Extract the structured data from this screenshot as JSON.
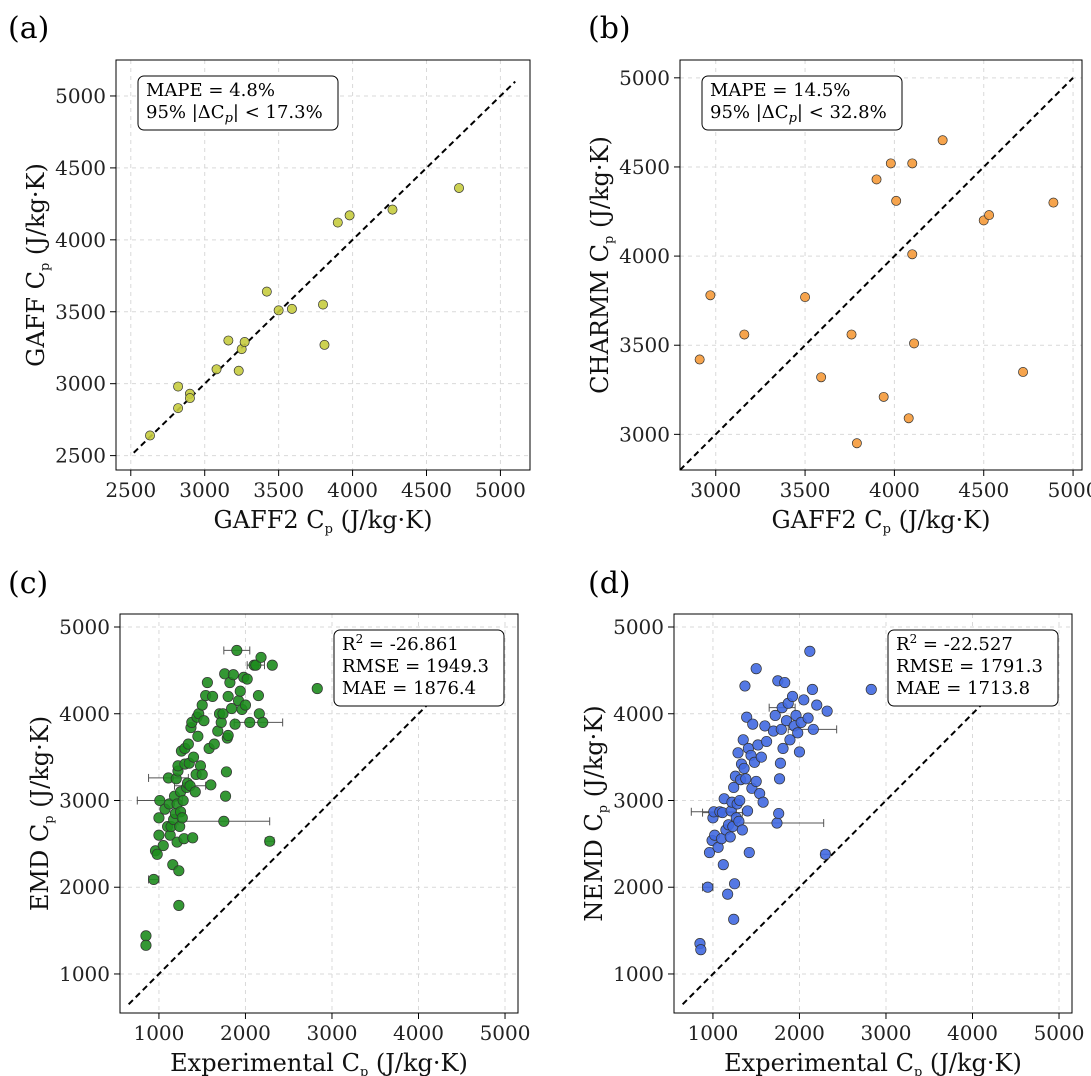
{
  "chart_data": [
    {
      "type": "scatter",
      "panel_label": "(a)",
      "xlabel": "GAFF2 C",
      "xlabel_sub": "p",
      "xlabel_unit": " (J/kg·K)",
      "ylabel": "GAFF C",
      "ylabel_sub": "p",
      "ylabel_unit": " (J/kg·K)",
      "xlim": [
        2400,
        5200
      ],
      "ylim": [
        2400,
        5250
      ],
      "xticks": [
        2500,
        3000,
        3500,
        4000,
        4500,
        5000
      ],
      "yticks": [
        2500,
        3000,
        3500,
        4000,
        4500,
        5000
      ],
      "grid": true,
      "color": "#c6cc3f",
      "diagonal": [
        2520,
        5100
      ],
      "stats_position": "top-left",
      "stats": [
        "MAPE = 4.8%",
        "95% |ΔCp| < 17.3%"
      ],
      "points": [
        [
          2630,
          2640
        ],
        [
          2820,
          2830
        ],
        [
          2820,
          2980
        ],
        [
          2900,
          2930
        ],
        [
          2900,
          2900
        ],
        [
          3080,
          3100
        ],
        [
          3160,
          3300
        ],
        [
          3230,
          3090
        ],
        [
          3250,
          3240
        ],
        [
          3270,
          3290
        ],
        [
          3420,
          3640
        ],
        [
          3500,
          3510
        ],
        [
          3590,
          3520
        ],
        [
          3800,
          3550
        ],
        [
          3810,
          3270
        ],
        [
          3900,
          4120
        ],
        [
          3980,
          4170
        ],
        [
          4270,
          4210
        ],
        [
          4720,
          4360
        ]
      ]
    },
    {
      "type": "scatter",
      "panel_label": "(b)",
      "xlabel": "GAFF2 C",
      "xlabel_sub": "p",
      "xlabel_unit": " (J/kg·K)",
      "ylabel": "CHARMM C",
      "ylabel_sub": "p",
      "ylabel_unit": " (J/kg·K)",
      "xlim": [
        2800,
        5050
      ],
      "ylim": [
        2800,
        5100
      ],
      "xticks": [
        3000,
        3500,
        4000,
        4500,
        5000
      ],
      "yticks": [
        3000,
        3500,
        4000,
        4500,
        5000
      ],
      "grid": true,
      "color": "#f59a3a",
      "diagonal": [
        2800,
        5000
      ],
      "stats_position": "top-left",
      "stats": [
        "MAPE = 14.5%",
        "95% |ΔCp| < 32.8%"
      ],
      "points": [
        [
          2910,
          3420
        ],
        [
          2970,
          3780
        ],
        [
          3160,
          3560
        ],
        [
          3500,
          3770
        ],
        [
          3590,
          3320
        ],
        [
          3760,
          3560
        ],
        [
          3790,
          2950
        ],
        [
          3900,
          4430
        ],
        [
          3940,
          3210
        ],
        [
          3980,
          4520
        ],
        [
          4010,
          4310
        ],
        [
          4080,
          3090
        ],
        [
          4100,
          4520
        ],
        [
          4100,
          4010
        ],
        [
          4110,
          3510
        ],
        [
          4270,
          4650
        ],
        [
          4500,
          4200
        ],
        [
          4530,
          4230
        ],
        [
          4720,
          3350
        ],
        [
          4890,
          4300
        ]
      ]
    },
    {
      "type": "scatter",
      "panel_label": "(c)",
      "xlabel": "Experimental C",
      "xlabel_sub": "p",
      "xlabel_unit": " (J/kg·K)",
      "ylabel": "EMD C",
      "ylabel_sub": "p",
      "ylabel_unit": " (J/kg·K)",
      "xlim": [
        550,
        5150
      ],
      "ylim": [
        550,
        5150
      ],
      "xticks": [
        1000,
        2000,
        3000,
        4000,
        5000
      ],
      "yticks": [
        1000,
        2000,
        3000,
        4000,
        5000
      ],
      "grid": true,
      "color": "#1e8c1e",
      "diagonal": [
        650,
        4350
      ],
      "stats_position": "top-right",
      "stats": [
        "R2 = -26.861",
        "RMSE = 1949.3",
        "MAE = 1876.4"
      ],
      "errorbars": [
        {
          "x": 1900,
          "y": 4730,
          "xerr": 150
        },
        {
          "x": 2120,
          "y": 4560,
          "xerr": 100
        },
        {
          "x": 2150,
          "y": 3900,
          "xerr": 280
        },
        {
          "x": 1750,
          "y": 2760,
          "xerr": 530
        },
        {
          "x": 1010,
          "y": 3000,
          "xerr": 260
        },
        {
          "x": 1110,
          "y": 3260,
          "xerr": 230
        },
        {
          "x": 1360,
          "y": 3170,
          "xerr": 180
        },
        {
          "x": 940,
          "y": 2090,
          "xerr": 60
        },
        {
          "x": 2280,
          "y": 2530,
          "xerr": 50
        }
      ],
      "points": [
        [
          850,
          1440
        ],
        [
          850,
          1330
        ],
        [
          940,
          2090
        ],
        [
          960,
          2420
        ],
        [
          980,
          2380
        ],
        [
          1000,
          2600
        ],
        [
          1000,
          2800
        ],
        [
          1010,
          3000
        ],
        [
          1050,
          2480
        ],
        [
          1070,
          2900
        ],
        [
          1100,
          2700
        ],
        [
          1110,
          3260
        ],
        [
          1120,
          2960
        ],
        [
          1130,
          2600
        ],
        [
          1140,
          2700
        ],
        [
          1160,
          2260
        ],
        [
          1170,
          2780
        ],
        [
          1180,
          3050
        ],
        [
          1190,
          2850
        ],
        [
          1200,
          3250
        ],
        [
          1210,
          2520
        ],
        [
          1210,
          2960
        ],
        [
          1220,
          3340
        ],
        [
          1220,
          3400
        ],
        [
          1230,
          2190
        ],
        [
          1230,
          1790
        ],
        [
          1240,
          2700
        ],
        [
          1250,
          2870
        ],
        [
          1250,
          3100
        ],
        [
          1260,
          3570
        ],
        [
          1270,
          2800
        ],
        [
          1280,
          3000
        ],
        [
          1290,
          2560
        ],
        [
          1300,
          3420
        ],
        [
          1300,
          3600
        ],
        [
          1320,
          3150
        ],
        [
          1330,
          3200
        ],
        [
          1340,
          3650
        ],
        [
          1350,
          3430
        ],
        [
          1360,
          3170
        ],
        [
          1370,
          3840
        ],
        [
          1380,
          3900
        ],
        [
          1390,
          2570
        ],
        [
          1400,
          3500
        ],
        [
          1420,
          3100
        ],
        [
          1430,
          3300
        ],
        [
          1440,
          3960
        ],
        [
          1450,
          3740
        ],
        [
          1460,
          4000
        ],
        [
          1480,
          3400
        ],
        [
          1500,
          3300
        ],
        [
          1500,
          4100
        ],
        [
          1520,
          3920
        ],
        [
          1540,
          4210
        ],
        [
          1560,
          4360
        ],
        [
          1580,
          3600
        ],
        [
          1600,
          3180
        ],
        [
          1620,
          4200
        ],
        [
          1640,
          3650
        ],
        [
          1680,
          3800
        ],
        [
          1700,
          4000
        ],
        [
          1720,
          3900
        ],
        [
          1740,
          4000
        ],
        [
          1750,
          2760
        ],
        [
          1760,
          4460
        ],
        [
          1770,
          3050
        ],
        [
          1780,
          3330
        ],
        [
          1790,
          3720
        ],
        [
          1800,
          4200
        ],
        [
          1800,
          3750
        ],
        [
          1820,
          4360
        ],
        [
          1840,
          4060
        ],
        [
          1860,
          4450
        ],
        [
          1880,
          3880
        ],
        [
          1900,
          4730
        ],
        [
          1920,
          4150
        ],
        [
          1940,
          4260
        ],
        [
          1960,
          4050
        ],
        [
          1980,
          4420
        ],
        [
          2000,
          4100
        ],
        [
          2020,
          4400
        ],
        [
          2050,
          3900
        ],
        [
          2100,
          4560
        ],
        [
          2120,
          4560
        ],
        [
          2150,
          4210
        ],
        [
          2160,
          4000
        ],
        [
          2180,
          4650
        ],
        [
          2200,
          3900
        ],
        [
          2280,
          2530
        ],
        [
          2310,
          4560
        ],
        [
          2830,
          4290
        ]
      ]
    },
    {
      "type": "scatter",
      "panel_label": "(d)",
      "xlabel": "Experimental C",
      "xlabel_sub": "p",
      "xlabel_unit": " (J/kg·K)",
      "ylabel": "NEMD C",
      "ylabel_sub": "p",
      "ylabel_unit": " (J/kg·K)",
      "xlim": [
        550,
        5150
      ],
      "ylim": [
        550,
        5150
      ],
      "xticks": [
        1000,
        2000,
        3000,
        4000,
        5000
      ],
      "yticks": [
        1000,
        2000,
        3000,
        4000,
        5000
      ],
      "grid": true,
      "color": "#4169e1",
      "diagonal": [
        650,
        4350
      ],
      "stats_position": "top-right",
      "stats": [
        "R2 = -22.527",
        "RMSE = 1791.3",
        "MAE = 1713.8"
      ],
      "errorbars": [
        {
          "x": 1800,
          "y": 4070,
          "xerr": 150
        },
        {
          "x": 2150,
          "y": 3820,
          "xerr": 280
        },
        {
          "x": 1750,
          "y": 2740,
          "xerr": 530
        },
        {
          "x": 1010,
          "y": 2870,
          "xerr": 260
        },
        {
          "x": 1110,
          "y": 2860,
          "xerr": 230
        },
        {
          "x": 940,
          "y": 2000,
          "xerr": 60
        },
        {
          "x": 2300,
          "y": 2380,
          "xerr": 50
        }
      ],
      "points": [
        [
          850,
          1350
        ],
        [
          860,
          1280
        ],
        [
          940,
          2000
        ],
        [
          960,
          2400
        ],
        [
          990,
          2540
        ],
        [
          1000,
          2800
        ],
        [
          1010,
          2870
        ],
        [
          1020,
          2600
        ],
        [
          1060,
          2460
        ],
        [
          1080,
          2870
        ],
        [
          1100,
          2560
        ],
        [
          1110,
          2860
        ],
        [
          1120,
          2260
        ],
        [
          1130,
          3020
        ],
        [
          1150,
          2660
        ],
        [
          1170,
          1920
        ],
        [
          1180,
          2720
        ],
        [
          1200,
          2580
        ],
        [
          1210,
          2880
        ],
        [
          1220,
          2980
        ],
        [
          1230,
          2700
        ],
        [
          1240,
          3150
        ],
        [
          1240,
          1630
        ],
        [
          1250,
          2040
        ],
        [
          1260,
          3280
        ],
        [
          1270,
          2800
        ],
        [
          1280,
          2960
        ],
        [
          1290,
          3550
        ],
        [
          1300,
          2760
        ],
        [
          1310,
          3000
        ],
        [
          1320,
          3240
        ],
        [
          1330,
          3420
        ],
        [
          1340,
          2660
        ],
        [
          1350,
          3700
        ],
        [
          1360,
          3370
        ],
        [
          1370,
          4320
        ],
        [
          1380,
          3250
        ],
        [
          1390,
          3960
        ],
        [
          1400,
          2880
        ],
        [
          1410,
          3600
        ],
        [
          1420,
          2400
        ],
        [
          1440,
          3520
        ],
        [
          1450,
          3140
        ],
        [
          1460,
          3880
        ],
        [
          1480,
          3440
        ],
        [
          1500,
          3220
        ],
        [
          1500,
          4520
        ],
        [
          1520,
          3640
        ],
        [
          1540,
          3080
        ],
        [
          1560,
          3500
        ],
        [
          1580,
          2980
        ],
        [
          1600,
          3860
        ],
        [
          1620,
          3680
        ],
        [
          1700,
          3800
        ],
        [
          1720,
          3980
        ],
        [
          1740,
          2740
        ],
        [
          1750,
          4380
        ],
        [
          1760,
          2850
        ],
        [
          1770,
          3250
        ],
        [
          1780,
          3430
        ],
        [
          1790,
          3820
        ],
        [
          1800,
          4070
        ],
        [
          1810,
          3600
        ],
        [
          1830,
          4360
        ],
        [
          1850,
          3920
        ],
        [
          1870,
          4120
        ],
        [
          1890,
          3700
        ],
        [
          1920,
          4200
        ],
        [
          1940,
          3860
        ],
        [
          1960,
          3980
        ],
        [
          1980,
          3780
        ],
        [
          2000,
          3560
        ],
        [
          2020,
          3900
        ],
        [
          2050,
          4160
        ],
        [
          2100,
          3950
        ],
        [
          2120,
          4720
        ],
        [
          2150,
          4280
        ],
        [
          2160,
          3820
        ],
        [
          2200,
          4100
        ],
        [
          2300,
          2380
        ],
        [
          2320,
          4030
        ],
        [
          2830,
          4280
        ]
      ]
    }
  ]
}
